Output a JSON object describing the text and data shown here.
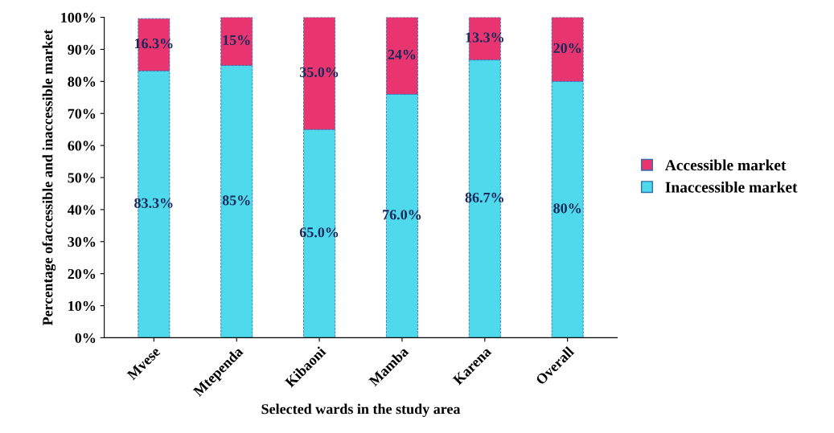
{
  "chart_data": {
    "type": "bar",
    "stacked": true,
    "xlabel": "Selected wards in the study area",
    "ylabel": "Percentage ofaccessible and inaccessible market",
    "categories": [
      "Mvese",
      "Mtependa",
      "Kibaoni",
      "Mamba",
      "Karena",
      "Overall"
    ],
    "series": [
      {
        "name": "Inaccessible market",
        "color": "#4fd9ec",
        "values": [
          83.3,
          85,
          65.0,
          76.0,
          86.7,
          80
        ],
        "value_labels": [
          "83.3%",
          "85%",
          "65.0%",
          "76.0%",
          "86.7%",
          "80%"
        ]
      },
      {
        "name": "Accessible market",
        "color": "#e8356f",
        "values": [
          16.3,
          15,
          35.0,
          24,
          13.3,
          20
        ],
        "value_labels": [
          "16.3%",
          "15%",
          "35.0%",
          "24%",
          "13.3%",
          "20%"
        ]
      }
    ],
    "ylim": [
      0,
      100
    ],
    "yticks": [
      {
        "value": 0,
        "label": "0%"
      },
      {
        "value": 10,
        "label": "10%"
      },
      {
        "value": 20,
        "label": "20%"
      },
      {
        "value": 30,
        "label": "30%"
      },
      {
        "value": 40,
        "label": "40%"
      },
      {
        "value": 50,
        "label": "50%"
      },
      {
        "value": 60,
        "label": "60%"
      },
      {
        "value": 70,
        "label": "70%"
      },
      {
        "value": 80,
        "label": "80%"
      },
      {
        "value": 90,
        "label": "90%"
      },
      {
        "value": 100,
        "label": "100%"
      }
    ],
    "grid": false,
    "legend": "right"
  }
}
